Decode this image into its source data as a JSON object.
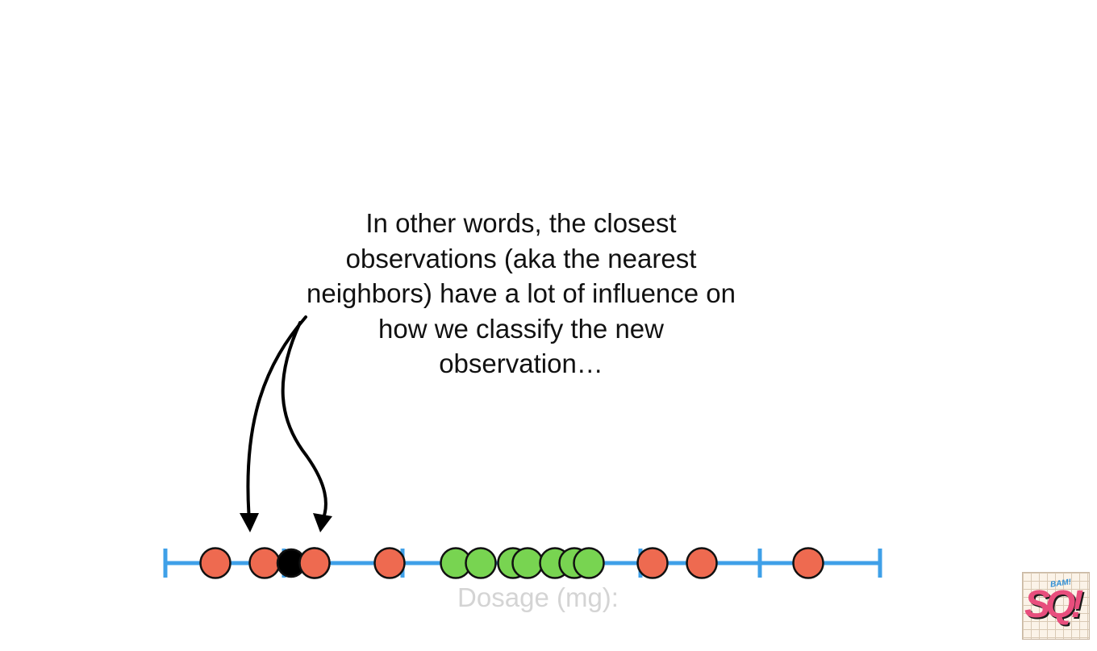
{
  "caption": {
    "lines": [
      "In other words, the closest",
      "observations (aka the nearest",
      "neighbors) have a lot of influence on",
      "how we classify the new",
      "observation…"
    ]
  },
  "axis": {
    "label": "Dosage (mg):"
  },
  "logo": {
    "letters": "SQ!",
    "small_text": "BAM!"
  },
  "colors": {
    "axis_line": "#3fa0e8",
    "red_point": "#ee6a50",
    "green_point": "#78d451",
    "new_point": "#000000",
    "outline": "#111111",
    "arrow": "#000000",
    "axis_label": "#d4d4d4"
  },
  "points": {
    "red": [
      1,
      2,
      3,
      4,
      8,
      9,
      10
    ],
    "green": [
      5,
      5.2,
      5.4,
      5.5,
      5.7,
      5.9,
      6
    ],
    "new_observation": 2.5
  }
}
